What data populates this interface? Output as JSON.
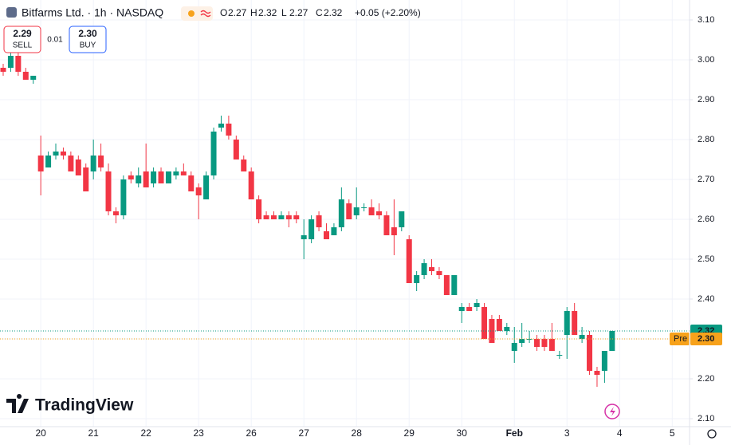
{
  "chart_data": {
    "type": "candlestick",
    "symbol": "Bitfarms Ltd. · 1h · NASDAQ",
    "ohlc_legend": [
      {
        "key": "O",
        "value": "2.27"
      },
      {
        "key": "H",
        "value": "2.32"
      },
      {
        "key": "L",
        "value": "2.27"
      },
      {
        "key": "C",
        "value": "2.32"
      }
    ],
    "change": "+0.05 (+2.20%)",
    "sell": {
      "price": "2.29",
      "label": "SELL"
    },
    "spread": "0.01",
    "buy": {
      "price": "2.30",
      "label": "BUY"
    },
    "brand": "TradingView",
    "up_color": "#089981",
    "down_color": "#f23645",
    "categories": [
      null,
      null,
      null,
      null,
      null,
      "20",
      null,
      null,
      null,
      null,
      null,
      null,
      "21",
      null,
      null,
      null,
      null,
      null,
      null,
      "22",
      null,
      null,
      null,
      null,
      null,
      null,
      "23",
      null,
      null,
      null,
      null,
      null,
      null,
      "26",
      null,
      null,
      null,
      null,
      null,
      null,
      "27",
      null,
      null,
      null,
      null,
      null,
      null,
      "28",
      null,
      null,
      null,
      null,
      null,
      null,
      "29",
      null,
      null,
      null,
      null,
      null,
      null,
      "30",
      null,
      null,
      null,
      null,
      null,
      null,
      "Feb",
      null,
      null,
      null,
      null,
      null,
      null,
      "3",
      null,
      null,
      null,
      null,
      null,
      null,
      "4",
      null,
      null,
      null,
      null,
      null,
      null,
      "5",
      null
    ],
    "open": [
      2.98,
      2.98,
      3.01,
      2.97,
      2.95,
      2.76,
      2.73,
      2.76,
      2.77,
      2.76,
      2.75,
      2.73,
      2.72,
      2.76,
      2.72,
      2.62,
      2.61,
      2.71,
      2.69,
      2.72,
      2.69,
      2.72,
      2.69,
      2.71,
      2.72,
      2.71,
      2.68,
      2.65,
      2.71,
      2.83,
      2.84,
      2.8,
      2.75,
      2.72,
      2.65,
      2.61,
      2.61,
      2.6,
      2.61,
      2.61,
      2.55,
      2.55,
      2.61,
      2.57,
      2.56,
      2.58,
      2.64,
      2.61,
      2.63,
      2.63,
      2.62,
      2.61,
      2.58,
      2.58,
      2.55,
      2.44,
      2.46,
      2.48,
      2.47,
      2.46,
      2.41,
      2.37,
      2.38,
      2.38,
      2.38,
      2.35,
      2.35,
      2.32,
      2.27,
      2.29,
      2.3,
      2.3,
      2.3,
      2.3,
      2.26,
      2.31,
      2.37,
      2.3,
      2.31,
      2.22,
      2.22,
      2.27,
      null,
      null,
      null,
      null,
      null,
      null,
      null,
      null,
      null
    ],
    "high": [
      2.99,
      3.02,
      3.02,
      2.98,
      2.96,
      2.81,
      2.77,
      2.79,
      2.78,
      2.77,
      2.76,
      2.74,
      2.8,
      2.79,
      2.74,
      2.63,
      2.71,
      2.72,
      2.73,
      2.79,
      2.73,
      2.73,
      2.72,
      2.73,
      2.74,
      2.72,
      2.69,
      2.72,
      2.83,
      2.86,
      2.86,
      2.81,
      2.76,
      2.73,
      2.66,
      2.62,
      2.62,
      2.62,
      2.62,
      2.62,
      2.6,
      2.61,
      2.62,
      2.59,
      2.59,
      2.68,
      2.65,
      2.68,
      2.64,
      2.65,
      2.64,
      2.62,
      2.65,
      2.62,
      2.56,
      2.47,
      2.5,
      2.5,
      2.48,
      2.46,
      2.46,
      2.39,
      2.39,
      2.4,
      2.39,
      2.36,
      2.36,
      2.34,
      2.33,
      2.34,
      2.32,
      2.31,
      2.31,
      2.34,
      2.27,
      2.38,
      2.39,
      2.33,
      2.32,
      2.23,
      2.27,
      2.32,
      null,
      null,
      null,
      null,
      null,
      null,
      null,
      null,
      null
    ],
    "low": [
      2.96,
      2.97,
      2.96,
      2.95,
      2.94,
      2.66,
      2.73,
      2.75,
      2.75,
      2.72,
      2.71,
      2.67,
      2.7,
      2.72,
      2.61,
      2.59,
      2.6,
      2.69,
      2.68,
      2.68,
      2.68,
      2.69,
      2.69,
      2.7,
      2.71,
      2.67,
      2.6,
      2.65,
      2.7,
      2.82,
      2.8,
      2.75,
      2.72,
      2.65,
      2.59,
      2.6,
      2.6,
      2.6,
      2.58,
      2.59,
      2.5,
      2.54,
      2.57,
      2.55,
      2.56,
      2.57,
      2.6,
      2.6,
      2.62,
      2.61,
      2.6,
      2.56,
      2.51,
      2.57,
      2.44,
      2.42,
      2.45,
      2.46,
      2.45,
      2.41,
      2.41,
      2.34,
      2.37,
      2.37,
      2.3,
      2.29,
      2.32,
      2.31,
      2.24,
      2.28,
      2.29,
      2.27,
      2.27,
      2.27,
      2.25,
      2.25,
      2.31,
      2.29,
      2.21,
      2.18,
      2.19,
      2.27,
      null,
      null,
      null,
      null,
      null,
      null,
      null,
      null,
      null
    ],
    "close": [
      2.97,
      3.01,
      2.97,
      2.95,
      2.96,
      2.72,
      2.76,
      2.77,
      2.76,
      2.72,
      2.71,
      2.67,
      2.76,
      2.73,
      2.62,
      2.61,
      2.7,
      2.7,
      2.71,
      2.68,
      2.72,
      2.69,
      2.72,
      2.72,
      2.71,
      2.67,
      2.66,
      2.71,
      2.82,
      2.84,
      2.81,
      2.75,
      2.72,
      2.65,
      2.6,
      2.6,
      2.6,
      2.61,
      2.6,
      2.6,
      2.56,
      2.6,
      2.58,
      2.55,
      2.58,
      2.65,
      2.6,
      2.63,
      2.63,
      2.61,
      2.61,
      2.56,
      2.56,
      2.62,
      2.44,
      2.46,
      2.49,
      2.47,
      2.46,
      2.41,
      2.46,
      2.38,
      2.37,
      2.39,
      2.3,
      2.29,
      2.32,
      2.33,
      2.29,
      2.3,
      2.3,
      2.28,
      2.28,
      2.27,
      2.26,
      2.37,
      2.31,
      2.31,
      2.22,
      2.21,
      2.27,
      2.32,
      null,
      null,
      null,
      null,
      null,
      null,
      null,
      null,
      null
    ],
    "ylim": [
      2.08,
      3.15
    ],
    "yticks": [
      {
        "value": 2.1,
        "label": "2.10"
      },
      {
        "value": 2.2,
        "label": "2.20"
      },
      {
        "value": 2.3,
        "label": "2.30"
      },
      {
        "value": 2.4,
        "label": "2.40"
      },
      {
        "value": 2.5,
        "label": "2.50"
      },
      {
        "value": 2.6,
        "label": "2.60"
      },
      {
        "value": 2.7,
        "label": "2.70"
      },
      {
        "value": 2.8,
        "label": "2.80"
      },
      {
        "value": 2.9,
        "label": "2.90"
      },
      {
        "value": 3.0,
        "label": "3.00"
      },
      {
        "value": 3.1,
        "label": "3.10"
      }
    ],
    "grid": true,
    "price_lines": [
      {
        "value": 2.32,
        "label": "2.32",
        "color": "#089981"
      },
      {
        "tag": "Pre",
        "value": 2.3,
        "label": "2.30",
        "color": "#f7a21b"
      }
    ]
  }
}
